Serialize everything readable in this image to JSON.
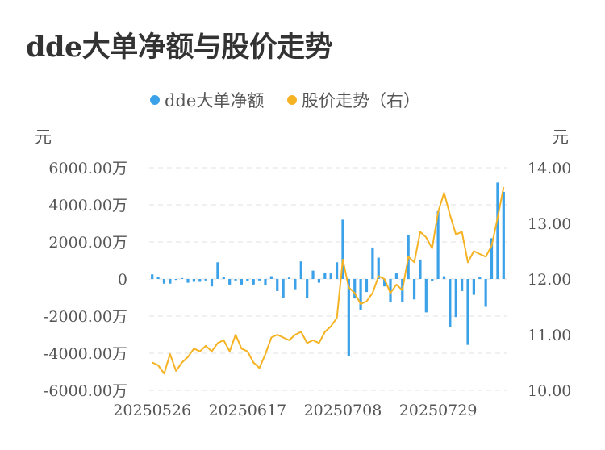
{
  "title": "dde大单净额与股价走势",
  "colors": {
    "bar": "#3BA1E8",
    "line": "#F5B223",
    "grid": "#E6E6E6",
    "text": "#555555"
  },
  "chart_data": {
    "type": "bar+line",
    "title": "dde大单净额与股价走势",
    "legend": {
      "position": "top-center",
      "items": [
        {
          "label": "dde大单净额",
          "color": "#3BA1E8",
          "marker": "circle"
        },
        {
          "label": "股价走势（右）",
          "color": "#F5B223",
          "marker": "circle"
        }
      ]
    },
    "left_axis": {
      "unit_label": "元",
      "min": -6000,
      "max": 6000,
      "ticks": [
        {
          "value": 6000,
          "label": "6000.00万"
        },
        {
          "value": 4000,
          "label": "4000.00万"
        },
        {
          "value": 2000,
          "label": "2000.00万"
        },
        {
          "value": 0,
          "label": "0"
        },
        {
          "value": -2000,
          "label": "-2000.00万"
        },
        {
          "value": -4000,
          "label": "-4000.00万"
        },
        {
          "value": -6000,
          "label": "-6000.00万"
        }
      ]
    },
    "right_axis": {
      "unit_label": "元",
      "min": 10,
      "max": 14,
      "ticks": [
        {
          "value": 14,
          "label": "14.00"
        },
        {
          "value": 13,
          "label": "13.00"
        },
        {
          "value": 12,
          "label": "12.00"
        },
        {
          "value": 11,
          "label": "11.00"
        },
        {
          "value": 10,
          "label": "10.00"
        }
      ]
    },
    "x_ticks": [
      {
        "index": 0,
        "label": "20250526"
      },
      {
        "index": 16,
        "label": "20250617"
      },
      {
        "index": 32,
        "label": "20250708"
      },
      {
        "index": 48,
        "label": "20250729"
      }
    ],
    "grid": "horizontal-dashed",
    "series": [
      {
        "name": "dde大单净额",
        "axis": "left",
        "kind": "bar",
        "values": [
          250,
          120,
          -250,
          -250,
          -50,
          50,
          -200,
          -150,
          -150,
          -80,
          -400,
          900,
          120,
          -300,
          -80,
          -300,
          -100,
          -300,
          -80,
          -350,
          150,
          -650,
          -1000,
          80,
          -550,
          950,
          -1000,
          450,
          -200,
          350,
          300,
          900,
          3200,
          -4150,
          -1050,
          -1650,
          -700,
          1700,
          1150,
          -400,
          -1250,
          300,
          -1250,
          2350,
          -1100,
          1050,
          -1800,
          -100,
          3650,
          150,
          -2600,
          -2050,
          -650,
          -3550,
          -850,
          100,
          -1500,
          2200,
          5200,
          4700
        ],
        "unit": "万元"
      },
      {
        "name": "股价走势（右）",
        "axis": "right",
        "kind": "line",
        "values": [
          10.5,
          10.45,
          10.3,
          10.65,
          10.35,
          10.5,
          10.6,
          10.75,
          10.7,
          10.8,
          10.7,
          10.85,
          10.9,
          10.7,
          11.0,
          10.75,
          10.7,
          10.5,
          10.4,
          10.65,
          10.95,
          11.0,
          10.95,
          10.9,
          11.0,
          11.05,
          10.85,
          10.9,
          10.85,
          11.05,
          11.15,
          11.3,
          12.35,
          11.85,
          11.75,
          11.55,
          11.6,
          11.75,
          12.05,
          12.0,
          11.75,
          11.9,
          11.8,
          12.4,
          12.3,
          12.85,
          12.75,
          12.55,
          13.2,
          13.55,
          13.15,
          12.8,
          12.85,
          12.3,
          12.5,
          12.45,
          12.4,
          12.6,
          13.1,
          13.65
        ],
        "unit": "元"
      }
    ]
  }
}
